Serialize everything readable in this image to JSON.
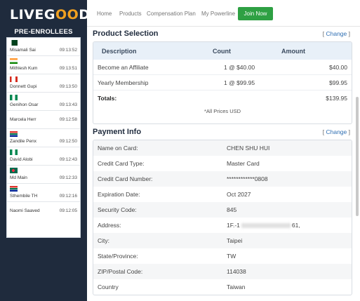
{
  "logo": {
    "part1": "LIVEG",
    "part2": "OO",
    "part3": "D"
  },
  "sidebar": {
    "title": "PRE-ENROLLEES",
    "items": [
      {
        "flag": "pk",
        "name": "Misamali Sai",
        "time": "09:13:52"
      },
      {
        "flag": "in",
        "name": "Mithlesh Kum",
        "time": "09:13:51"
      },
      {
        "flag": "ca",
        "name": "Donnett Gupi",
        "time": "09:13:50"
      },
      {
        "flag": "ng",
        "name": "Genihon Osar",
        "time": "09:13:43"
      },
      {
        "flag": "",
        "name": "Marcela Herr",
        "time": "09:12:58"
      },
      {
        "flag": "za",
        "name": "Zandile Penx",
        "time": "09:12:50"
      },
      {
        "flag": "ng",
        "name": "David Alobi",
        "time": "09:12:43"
      },
      {
        "flag": "bd",
        "name": "Md Main",
        "time": "09:12:33"
      },
      {
        "flag": "za",
        "name": "Sthembile TH",
        "time": "09:12:16"
      },
      {
        "flag": "",
        "name": "Naomi Saaved",
        "time": "09:12:05"
      }
    ]
  },
  "nav": {
    "home": "Home",
    "products": "Products",
    "compensation": "Compensation Plan",
    "powerline": "My Powerline",
    "join": "Join Now"
  },
  "product_selection": {
    "title": "Product Selection",
    "change": "Change",
    "headers": {
      "description": "Description",
      "count": "Count",
      "amount": "Amount"
    },
    "rows": [
      {
        "description": "Become an Affiliate",
        "count": "1 @ $40.00",
        "amount": "$40.00"
      },
      {
        "description": "Yearly Membership",
        "count": "1 @ $99.95",
        "amount": "$99.95"
      }
    ],
    "totals_label": "Totals:",
    "totals_amount": "$139.95",
    "note": "*All Prices USD"
  },
  "payment_info": {
    "title": "Payment Info",
    "change": "Change",
    "rows": [
      {
        "label": "Name on Card:",
        "value": "CHEN SHU HUI"
      },
      {
        "label": "Credit Card Type:",
        "value": "Master Card"
      },
      {
        "label": "Credit Card Number:",
        "value": "************0808"
      },
      {
        "label": "Expiration Date:",
        "value": "Oct 2027"
      },
      {
        "label": "Security Code:",
        "value": "845"
      },
      {
        "label": "Address:",
        "value_prefix": "1F.-1",
        "value_suffix": "61,"
      },
      {
        "label": "City:",
        "value": "Taipei"
      },
      {
        "label": "State/Province:",
        "value": "TW"
      },
      {
        "label": "ZIP/Postal Code:",
        "value": "114038"
      },
      {
        "label": "Country",
        "value": "Taiwan"
      }
    ]
  }
}
